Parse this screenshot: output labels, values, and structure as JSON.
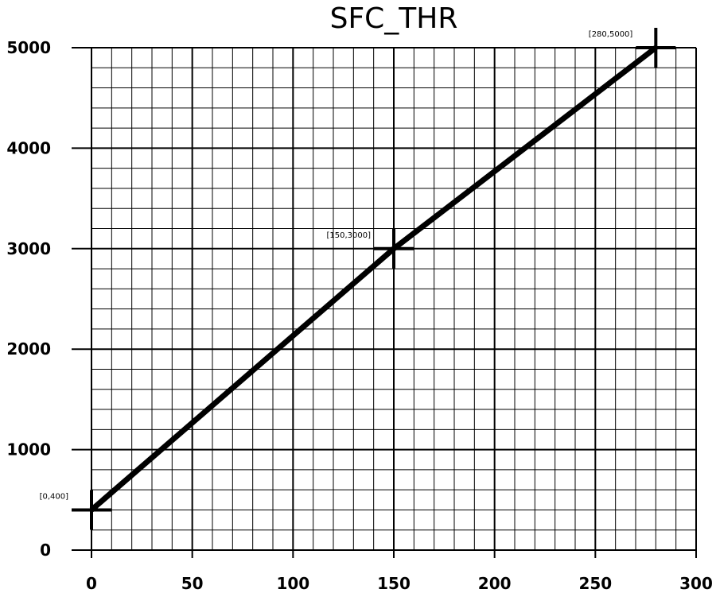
{
  "chart_data": {
    "type": "line",
    "title": "SFC_THR",
    "xlabel": "",
    "ylabel": "",
    "xlim": [
      0,
      300
    ],
    "ylim": [
      0,
      5000
    ],
    "x_ticks": [
      "0",
      "50",
      "100",
      "150",
      "200",
      "250",
      "300"
    ],
    "y_ticks": [
      "0",
      "1000",
      "2000",
      "3000",
      "4000",
      "5000"
    ],
    "grid": true,
    "grid_minor": true,
    "series": [
      {
        "x": [
          0,
          150,
          280
        ],
        "y": [
          400,
          3000,
          5000
        ],
        "labels": [
          "[0,400]",
          "[150,3000]",
          "[280,5000]"
        ],
        "color": "#000000",
        "marker": "plus"
      }
    ]
  }
}
